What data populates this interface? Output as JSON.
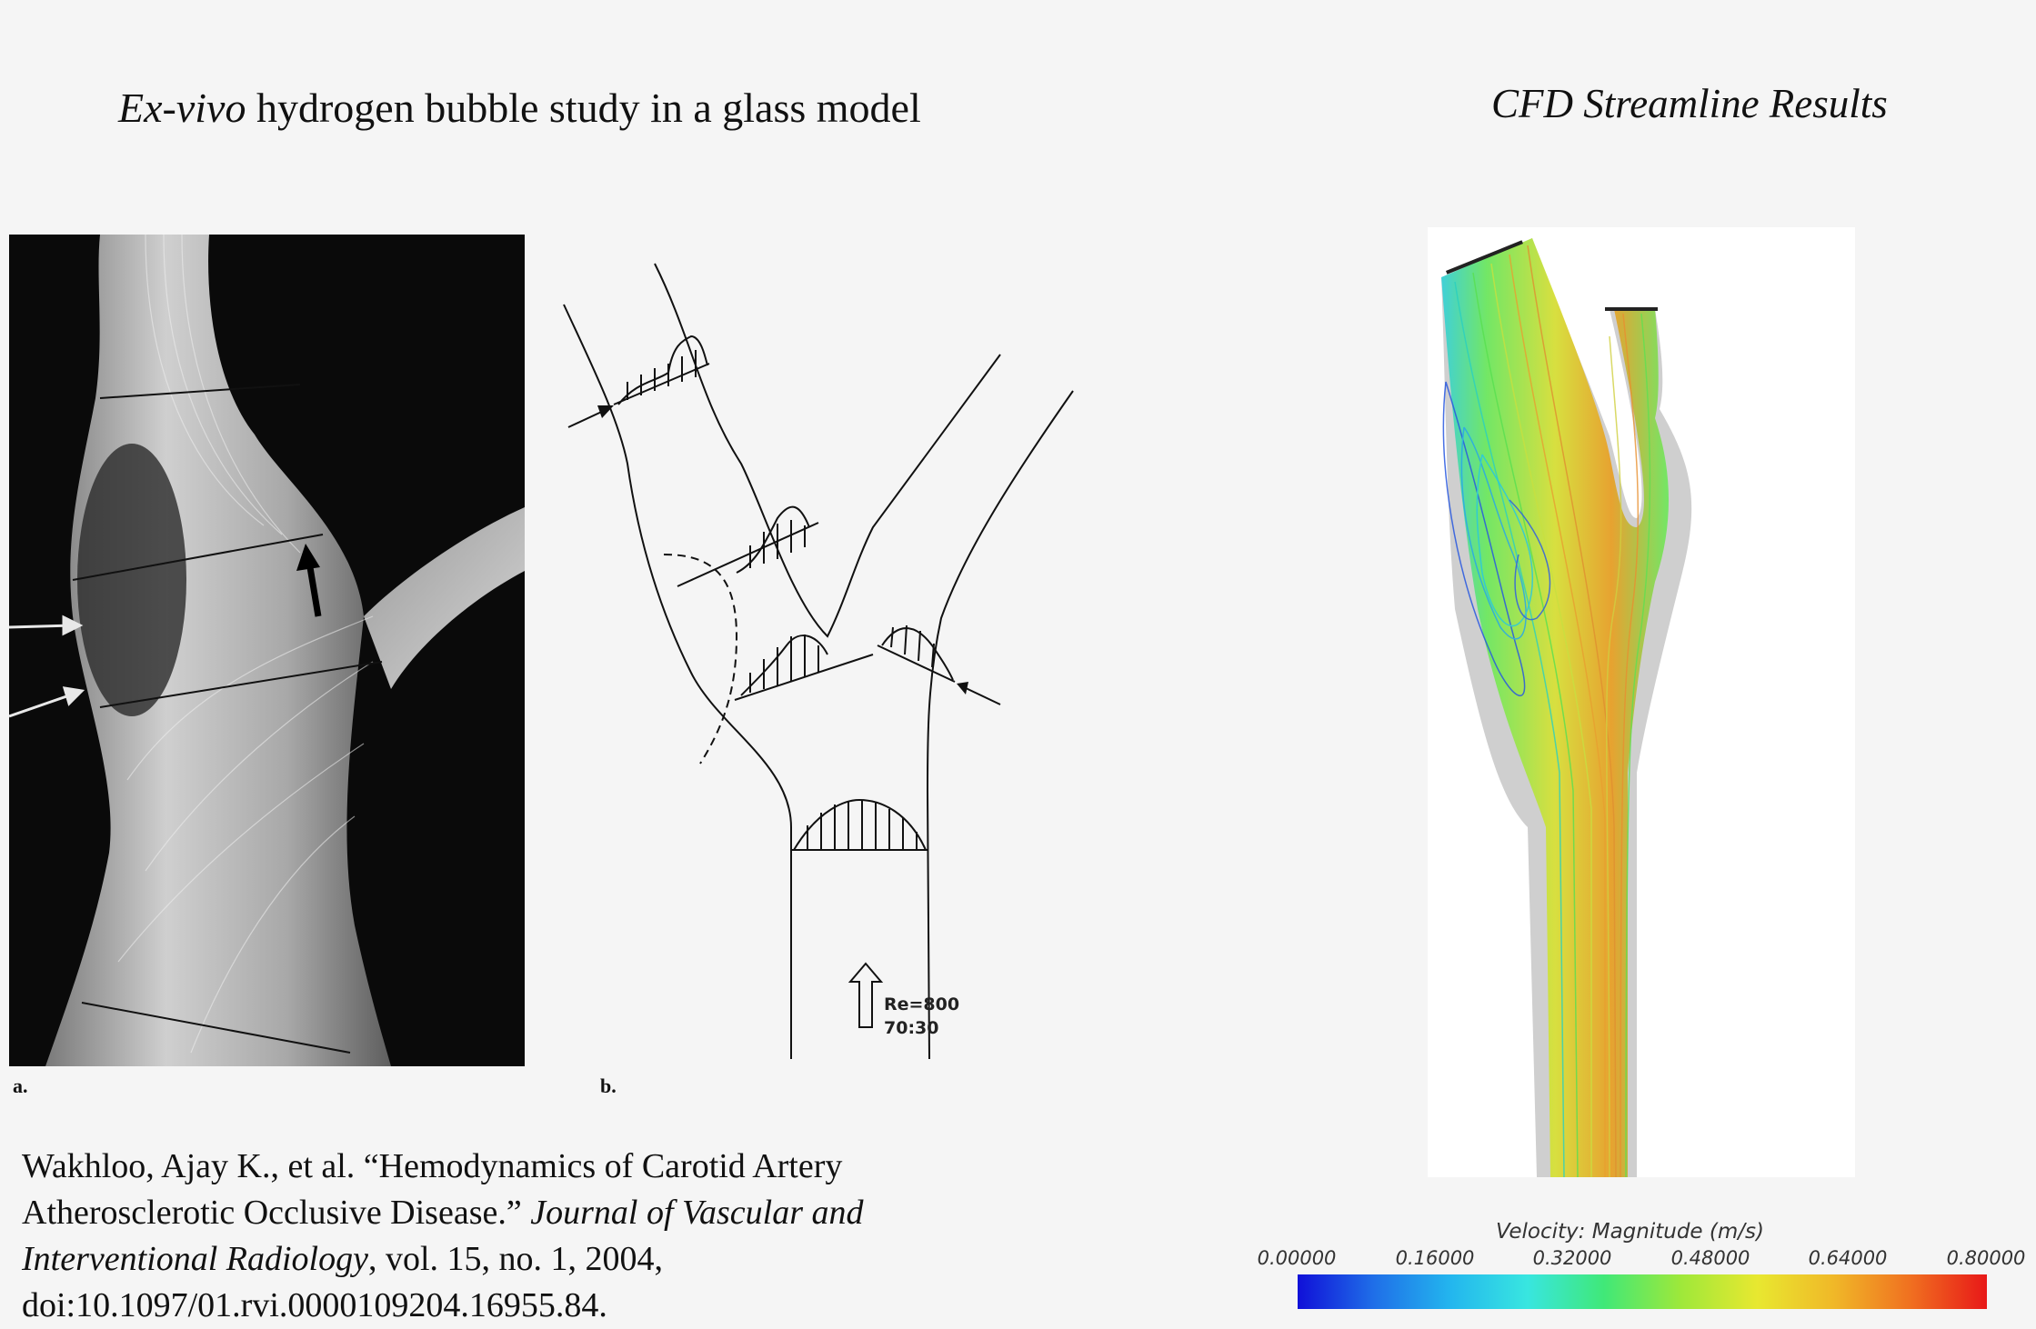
{
  "titles": {
    "left_italic": "Ex-vivo",
    "left_rest": " hydrogen bubble study in a glass model",
    "right": "CFD Streamline Results"
  },
  "panels": {
    "a_label": "a.",
    "b_label": "b.",
    "re_label": "Re=800",
    "ratio_label": "70:30"
  },
  "citation": {
    "part1": "Wakhloo, Ajay K., et al. “Hemodynamics of Carotid Artery Atherosclerotic Occlusive Disease.” ",
    "journal": "Journal of Vascular and Interventional Radiology",
    "part2": ", vol. 15, no. 1, 2004, doi:10.1097/01.rvi.0000109204.16955.84."
  },
  "colorbar": {
    "title": "Velocity: Magnitude (m/s)",
    "ticks": [
      "0.00000",
      "0.16000",
      "0.32000",
      "0.48000",
      "0.64000",
      "0.80000"
    ],
    "colors": [
      "#1010d8",
      "#1f6fe8",
      "#23b6ee",
      "#38e6e0",
      "#40e878",
      "#9ee83a",
      "#e8e830",
      "#f0b828",
      "#f07020",
      "#e81818"
    ]
  },
  "icons": [
    "arrow-icon",
    "flow-direction-arrow-icon"
  ]
}
